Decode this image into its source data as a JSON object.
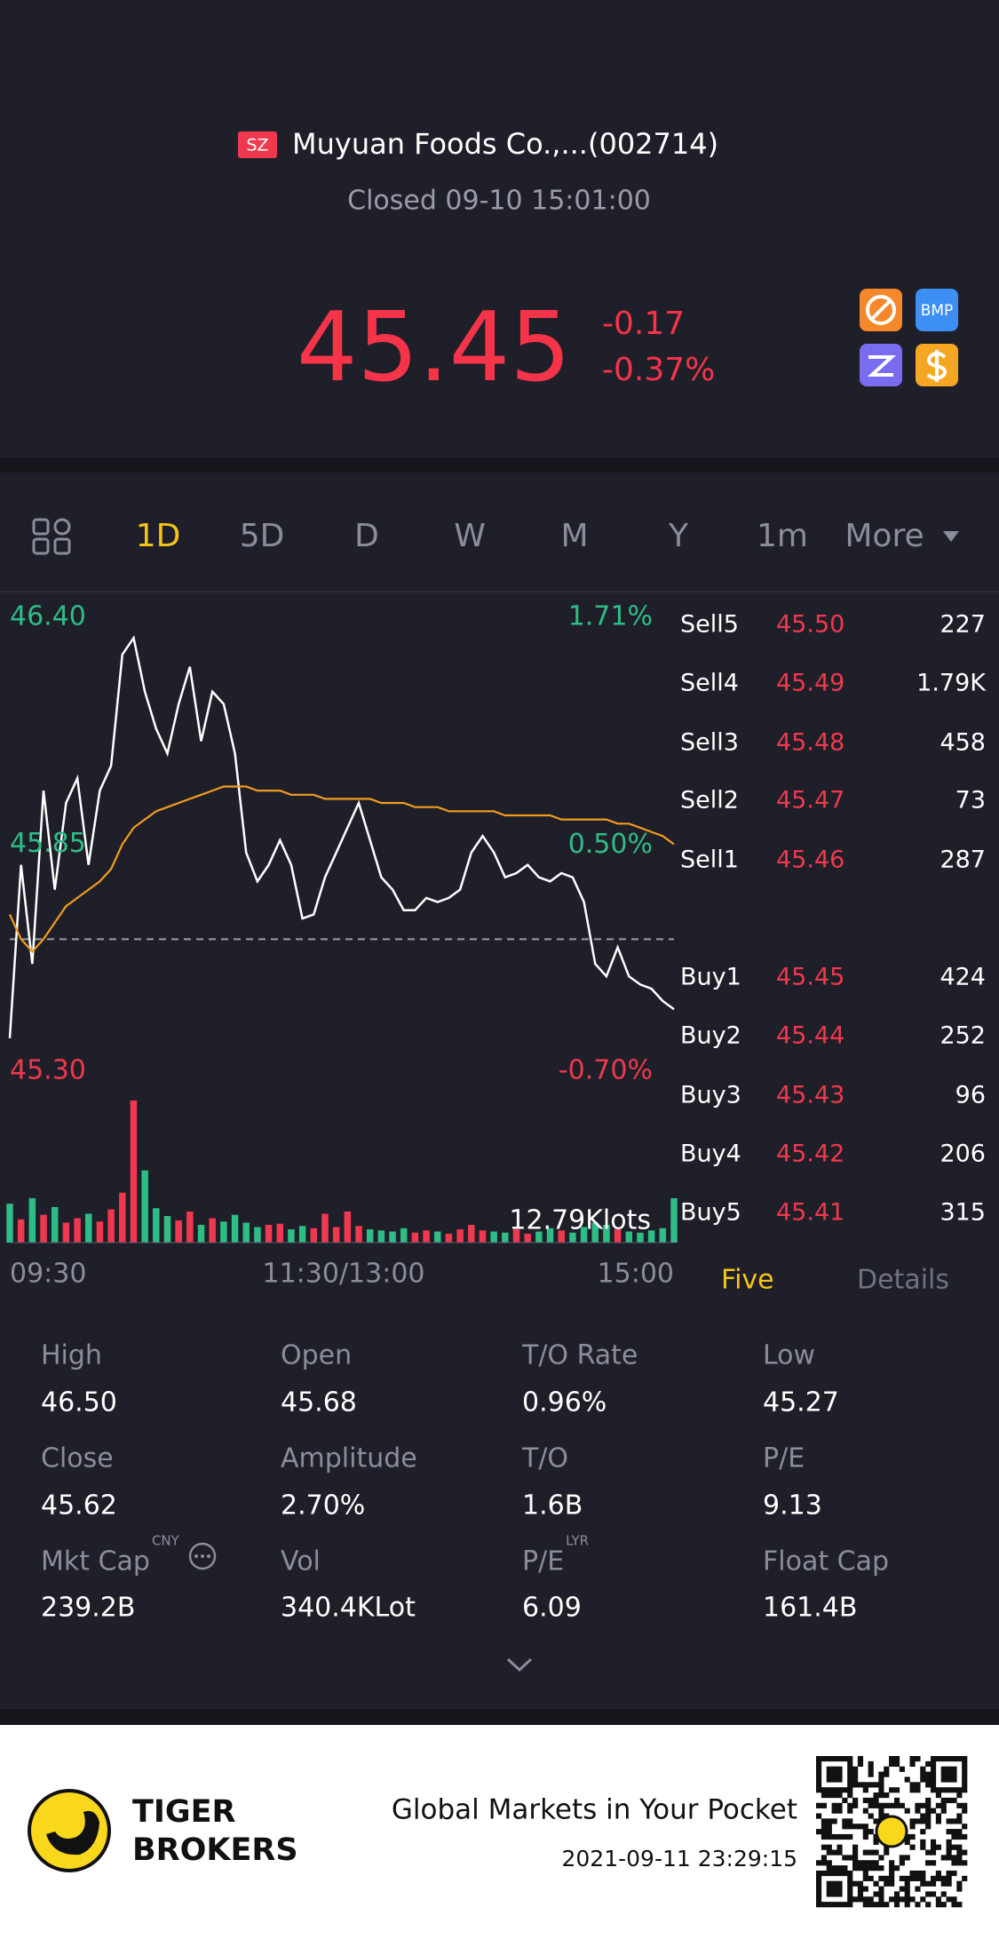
{
  "header": {
    "badge": "SZ",
    "name": "Muyuan Foods Co.,...(002714)",
    "status": "Closed 09-10 15:01:00",
    "price": "45.45",
    "change": "-0.17",
    "change_pct": "-0.37%",
    "icon_label": "BMP"
  },
  "tabs": [
    "1D",
    "5D",
    "D",
    "W",
    "M",
    "Y",
    "1m",
    "More"
  ],
  "chart_data": {
    "type": "line",
    "ylim": [
      45.3,
      46.4
    ],
    "yticks": [
      {
        "value": 46.4,
        "label": "46.40"
      },
      45.85,
      {
        "value": 45.3,
        "label": "45.30"
      }
    ],
    "y2lim": [
      -0.7,
      1.71
    ],
    "y2ticks": [
      {
        "value": 1.71,
        "label": "1.71%"
      },
      {
        "value": 0.5,
        "label": "0.50%"
      },
      {
        "value": -0.7,
        "label": "-0.70%"
      }
    ],
    "xtick_labels": [
      "09:30",
      "11:30/13:00",
      "15:00"
    ],
    "reference_line": 45.62,
    "up_color": "#f0384e",
    "down_color": "#2ebd85",
    "series": [
      {
        "color": "#ffffff",
        "values": [
          45.38,
          45.8,
          45.56,
          45.98,
          45.74,
          45.95,
          46.01,
          45.8,
          45.98,
          46.04,
          46.31,
          46.35,
          46.22,
          46.13,
          46.07,
          46.19,
          46.28,
          46.1,
          46.22,
          46.19,
          46.07,
          45.83,
          45.76,
          45.8,
          45.86,
          45.8,
          45.67,
          45.68,
          45.77,
          45.83,
          45.89,
          45.95,
          45.86,
          45.77,
          45.74,
          45.69,
          45.69,
          45.72,
          45.71,
          45.72,
          45.74,
          45.83,
          45.87,
          45.83,
          45.77,
          45.78,
          45.8,
          45.77,
          45.76,
          45.78,
          45.77,
          45.71,
          45.56,
          45.53,
          45.6,
          45.53,
          45.51,
          45.5,
          45.47,
          45.45
        ]
      },
      {
        "color": "#f39c1f",
        "values": [
          45.68,
          45.62,
          45.59,
          45.62,
          45.66,
          45.7,
          45.72,
          45.74,
          45.76,
          45.79,
          45.85,
          45.89,
          45.91,
          45.93,
          45.94,
          45.95,
          45.96,
          45.97,
          45.98,
          45.99,
          45.99,
          45.99,
          45.98,
          45.98,
          45.98,
          45.97,
          45.97,
          45.97,
          45.96,
          45.96,
          45.96,
          45.96,
          45.96,
          45.95,
          45.95,
          45.95,
          45.94,
          45.94,
          45.94,
          45.93,
          45.93,
          45.93,
          45.93,
          45.93,
          45.92,
          45.92,
          45.92,
          45.92,
          45.92,
          45.91,
          45.91,
          45.91,
          45.91,
          45.91,
          45.9,
          45.9,
          45.89,
          45.88,
          45.87,
          45.85
        ]
      }
    ],
    "volume": {
      "label": "12.79Klots",
      "ylim": [
        0,
        12.79
      ],
      "values": [
        3.5,
        2.1,
        4.0,
        2.5,
        3.2,
        1.8,
        2.2,
        2.6,
        1.9,
        3.0,
        4.5,
        12.79,
        6.5,
        3.1,
        2.4,
        2.0,
        2.8,
        1.6,
        2.2,
        1.9,
        2.5,
        1.8,
        1.4,
        1.6,
        1.7,
        1.2,
        1.5,
        1.3,
        2.6,
        1.4,
        2.8,
        1.5,
        1.2,
        1.1,
        1.0,
        1.3,
        0.9,
        1.1,
        1.0,
        0.8,
        1.2,
        1.6,
        1.1,
        1.0,
        0.9,
        1.2,
        0.8,
        1.0,
        1.3,
        1.1,
        0.9,
        1.4,
        1.8,
        1.6,
        1.2,
        1.0,
        0.9,
        1.1,
        1.3,
        4.0
      ]
    }
  },
  "order_book": {
    "rows": [
      [
        "Sell5",
        "45.50",
        "227"
      ],
      [
        "Sell4",
        "45.49",
        "1.79K"
      ],
      [
        "Sell3",
        "45.48",
        "458"
      ],
      [
        "Sell2",
        "45.47",
        "73"
      ],
      [
        "Sell1",
        "45.46",
        "287"
      ],
      [
        "Buy1",
        "45.45",
        "424"
      ],
      [
        "Buy2",
        "45.44",
        "252"
      ],
      [
        "Buy3",
        "45.43",
        "96"
      ],
      [
        "Buy4",
        "45.42",
        "206"
      ],
      [
        "Buy5",
        "45.41",
        "315"
      ]
    ]
  },
  "book_tabs": [
    "Five",
    "Details"
  ],
  "stats": [
    {
      "label": "High",
      "value": "46.50"
    },
    {
      "label": "Open",
      "value": "45.68"
    },
    {
      "label": "T/O Rate",
      "value": "0.96%"
    },
    {
      "label": "Low",
      "value": "45.27"
    },
    {
      "label": "Close",
      "value": "45.62"
    },
    {
      "label": "Amplitude",
      "value": "2.70%"
    },
    {
      "label": "T/O",
      "value": "1.6B"
    },
    {
      "label": "P/E",
      "value": "9.13"
    },
    {
      "label": "Mkt Cap",
      "sup": "CNY",
      "value": "239.2B"
    },
    {
      "label": "Vol",
      "value": "340.4KLot"
    },
    {
      "label": "P/E",
      "sup": "LYR",
      "value": "6.09"
    },
    {
      "label": "Float Cap",
      "value": "161.4B"
    }
  ],
  "footer": {
    "brand": [
      "TIGER",
      "BROKERS"
    ],
    "slogan": "Global Markets in Your Pocket",
    "timestamp": "2021-09-11 23:29:15"
  }
}
